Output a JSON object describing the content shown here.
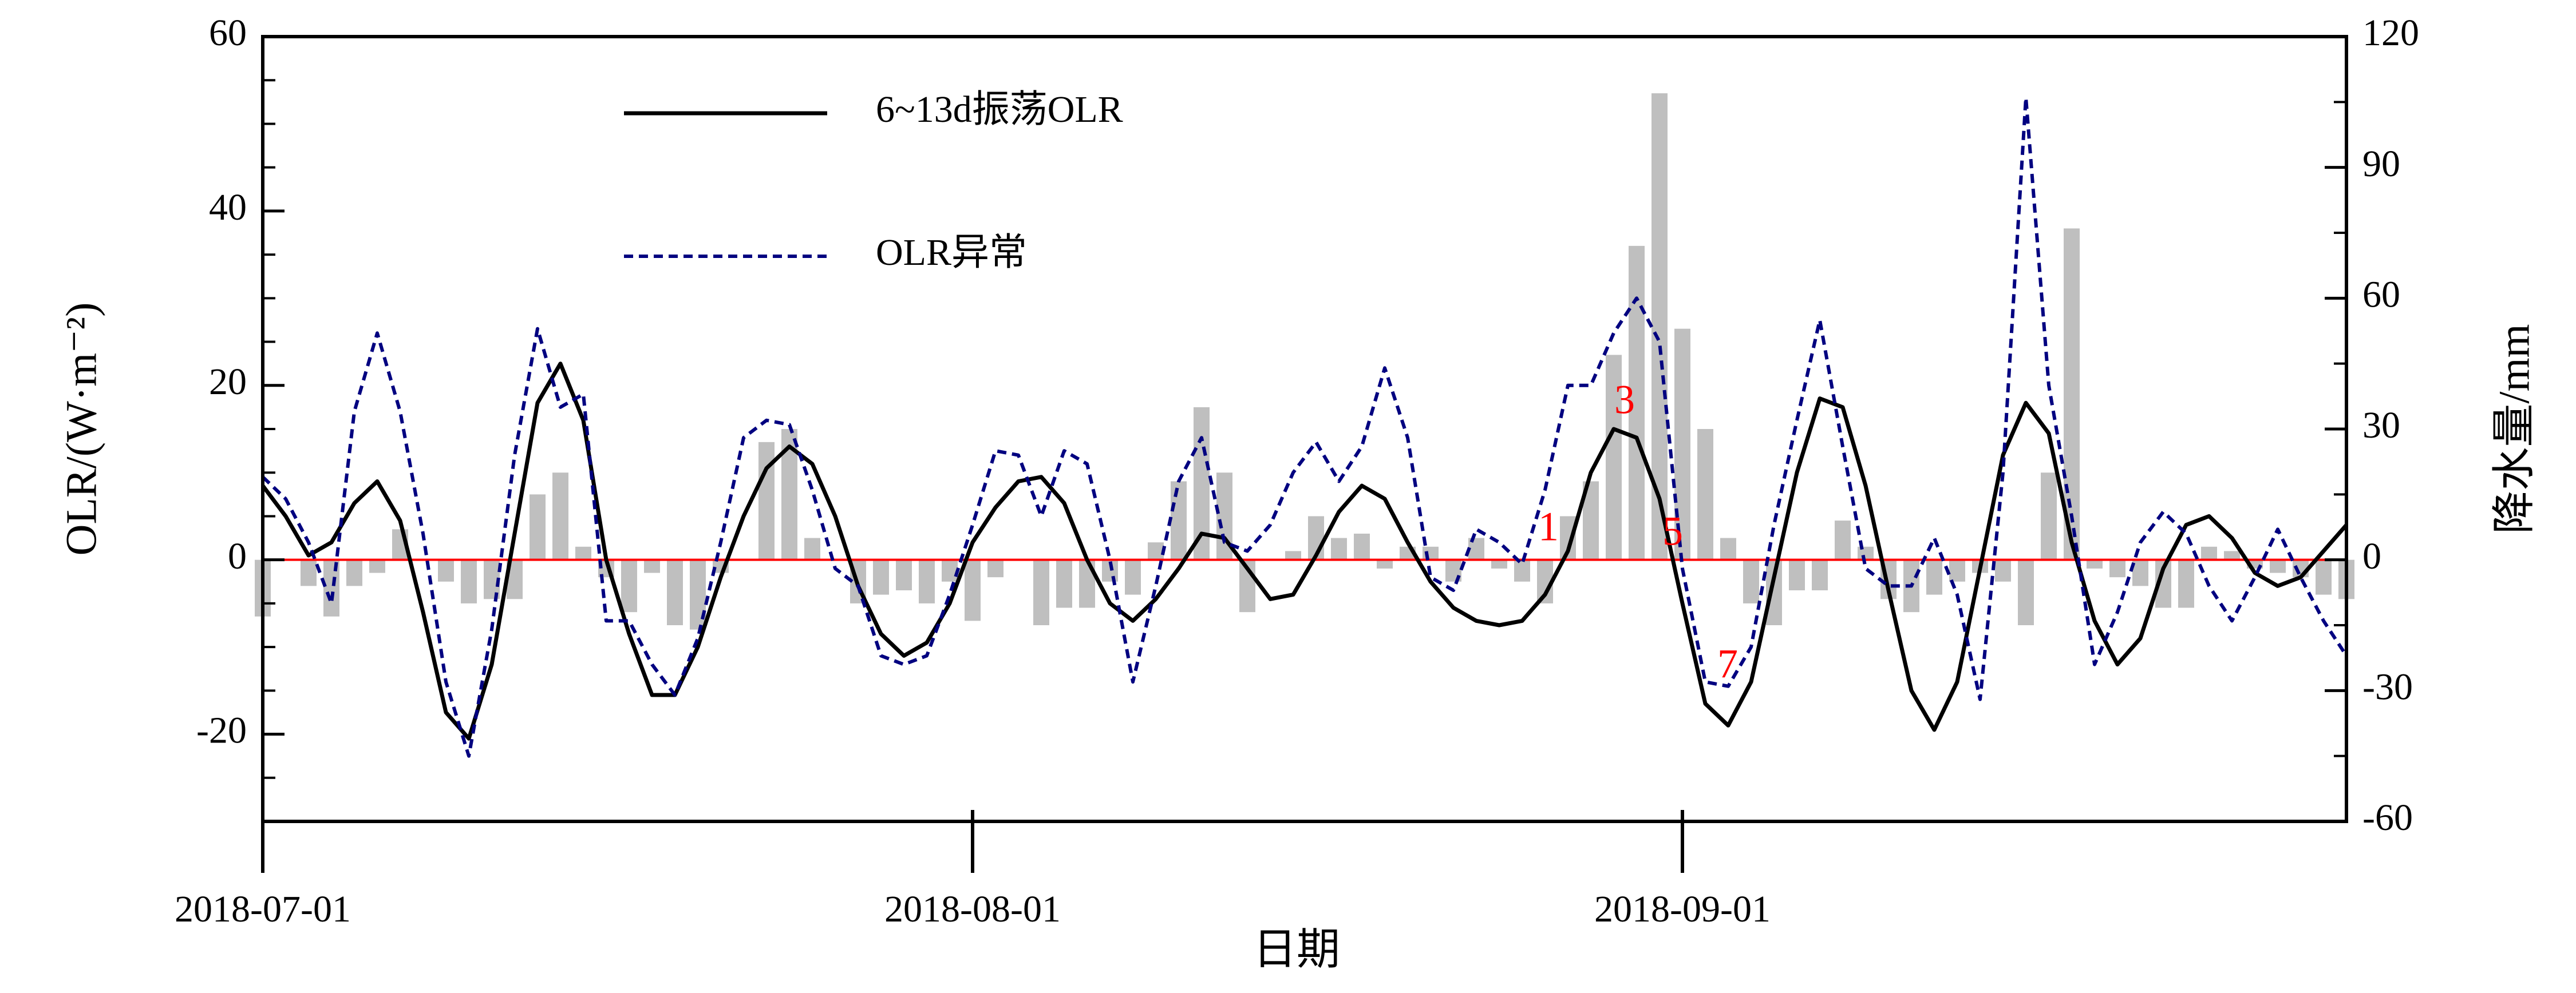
{
  "chart_data": {
    "type": "line",
    "xlabel": "日期",
    "ylabel": "OLR/(W·m⁻²)",
    "y2label": "降水量/mm",
    "x": [
      "2018-07-01",
      "2018-07-02",
      "2018-07-03",
      "2018-07-04",
      "2018-07-05",
      "2018-07-06",
      "2018-07-07",
      "2018-07-08",
      "2018-07-09",
      "2018-07-10",
      "2018-07-11",
      "2018-07-12",
      "2018-07-13",
      "2018-07-14",
      "2018-07-15",
      "2018-07-16",
      "2018-07-17",
      "2018-07-18",
      "2018-07-19",
      "2018-07-20",
      "2018-07-21",
      "2018-07-22",
      "2018-07-23",
      "2018-07-24",
      "2018-07-25",
      "2018-07-26",
      "2018-07-27",
      "2018-07-28",
      "2018-07-29",
      "2018-07-30",
      "2018-07-31",
      "2018-08-01",
      "2018-08-02",
      "2018-08-03",
      "2018-08-04",
      "2018-08-05",
      "2018-08-06",
      "2018-08-07",
      "2018-08-08",
      "2018-08-09",
      "2018-08-10",
      "2018-08-11",
      "2018-08-12",
      "2018-08-13",
      "2018-08-14",
      "2018-08-15",
      "2018-08-16",
      "2018-08-17",
      "2018-08-18",
      "2018-08-19",
      "2018-08-20",
      "2018-08-21",
      "2018-08-22",
      "2018-08-23",
      "2018-08-24",
      "2018-08-25",
      "2018-08-26",
      "2018-08-27",
      "2018-08-28",
      "2018-08-29",
      "2018-08-30",
      "2018-08-31",
      "2018-09-01",
      "2018-09-02",
      "2018-09-03",
      "2018-09-04",
      "2018-09-05",
      "2018-09-06",
      "2018-09-07",
      "2018-09-08",
      "2018-09-09",
      "2018-09-10",
      "2018-09-11",
      "2018-09-12",
      "2018-09-13",
      "2018-09-14",
      "2018-09-15",
      "2018-09-16",
      "2018-09-17",
      "2018-09-18",
      "2018-09-19",
      "2018-09-20",
      "2018-09-21",
      "2018-09-22",
      "2018-09-23",
      "2018-09-24",
      "2018-09-25",
      "2018-09-26",
      "2018-09-27",
      "2018-09-28",
      "2018-09-29",
      "2018-09-30"
    ],
    "xlim": [
      "2018-07-01",
      "2018-09-30"
    ],
    "xticks": [
      "2018-07-01",
      "2018-08-01",
      "2018-09-01"
    ],
    "ylim": [
      -30,
      60
    ],
    "yticks": [
      -20,
      0,
      20,
      40,
      60
    ],
    "y2lim": [
      -60,
      120
    ],
    "y2ticks": [
      -60,
      -30,
      0,
      30,
      60,
      90,
      120
    ],
    "axhline": {
      "value": 0,
      "color": "#ff0000"
    },
    "legend": "upper left",
    "series": [
      {
        "name": "降水量",
        "type": "bar",
        "axis": "y2",
        "color": "#bfbfbf",
        "in_legend": false,
        "values": [
          -13,
          0,
          -6,
          -13,
          -6,
          -3,
          7,
          0,
          -5,
          -10,
          -9,
          -9,
          15,
          20,
          3,
          -4,
          -12,
          -3,
          -15,
          -16,
          -3,
          0,
          27,
          30,
          5,
          0,
          -10,
          -8,
          -7,
          -10,
          -5,
          -14,
          -4,
          0,
          -15,
          -11,
          -11,
          -5,
          -8,
          4,
          18,
          35,
          20,
          -12,
          0,
          2,
          10,
          5,
          6,
          -2,
          3,
          3,
          -5,
          5,
          -2,
          -5,
          -10,
          10,
          18,
          47,
          72,
          107,
          53,
          30,
          5,
          -10,
          -15,
          -7,
          -7,
          9,
          3,
          -9,
          -12,
          -8,
          -5,
          -3,
          -5,
          -15,
          20,
          76,
          -2,
          -4,
          -6,
          -11,
          -11,
          3,
          2,
          -2,
          -3,
          -4,
          -8,
          -9
        ]
      },
      {
        "name": "6~13d振荡OLR",
        "type": "line",
        "color": "#000000",
        "dash": false,
        "values": [
          8.5,
          5,
          0.5,
          2,
          6.5,
          9,
          4.5,
          -6,
          -17.5,
          -20.5,
          -12,
          3,
          18,
          22.5,
          16,
          0,
          -8.5,
          -15.5,
          -15.5,
          -10,
          -2,
          5,
          10.5,
          13,
          11,
          5,
          -3,
          -8.5,
          -11,
          -9.5,
          -5,
          2,
          6,
          9,
          9.5,
          6.5,
          0,
          -5,
          -7,
          -4.5,
          -1,
          3,
          2.5,
          -1,
          -4.5,
          -4,
          0.5,
          5.5,
          8.5,
          7,
          2,
          -2.5,
          -5.5,
          -7,
          -7.5,
          -7,
          -4,
          1,
          10,
          15,
          14,
          7,
          -5,
          -16.5,
          -19,
          -14,
          -2,
          10,
          18.5,
          17.5,
          8.5,
          -3.5,
          -15,
          -19.5,
          -14,
          -1,
          12,
          18,
          14.5,
          2,
          -7,
          -12,
          -9,
          -1,
          4,
          5,
          2.5,
          -1.5,
          -3,
          -2,
          1,
          4
        ]
      },
      {
        "name": "OLR异常",
        "type": "line",
        "color": "#000080",
        "dash": true,
        "values": [
          9.5,
          7,
          2,
          -5,
          17,
          26,
          17,
          3,
          -14,
          -22.5,
          -8,
          12,
          26.5,
          17.5,
          19,
          -7,
          -7,
          -12,
          -15.5,
          -9,
          2,
          14,
          16,
          15.5,
          8,
          -1,
          -3,
          -11,
          -12,
          -11,
          -4,
          4,
          12.5,
          12,
          5,
          12.5,
          11,
          0,
          -14,
          -3,
          9,
          14,
          2,
          1,
          4,
          10,
          13.5,
          9,
          13,
          22,
          14,
          -2,
          -3.5,
          3.5,
          2,
          -0.5,
          8,
          20,
          20,
          26,
          30,
          25,
          -1,
          -14,
          -14.5,
          -10,
          4,
          16,
          27.5,
          13,
          -1,
          -3,
          -3,
          2.5,
          -4,
          -16,
          10,
          53,
          20,
          5,
          -12,
          -6,
          2,
          5.5,
          3,
          -3,
          -7,
          -2,
          3.5,
          -2,
          -7,
          -11
        ]
      }
    ],
    "annotations": [
      {
        "text": "1",
        "color": "#ff0000"
      },
      {
        "text": "3",
        "color": "#ff0000"
      },
      {
        "text": "5",
        "color": "#ff0000"
      },
      {
        "text": "7",
        "color": "#ff0000"
      }
    ]
  }
}
